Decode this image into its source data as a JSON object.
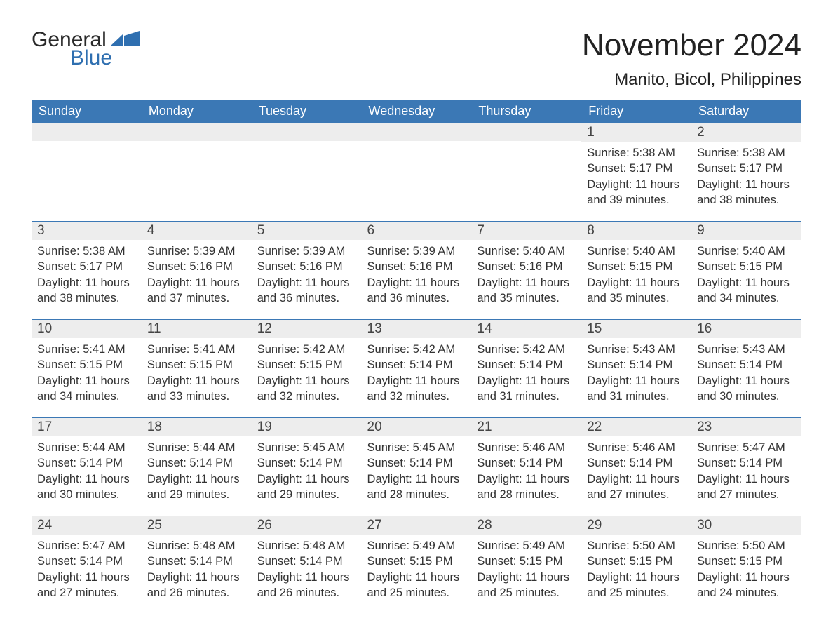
{
  "logo": {
    "line1": "General",
    "line2": "Blue",
    "flag_color": "#2f6fb0"
  },
  "title": "November 2024",
  "location": "Manito, Bicol, Philippines",
  "colors": {
    "header_bg": "#3b78b5",
    "header_text": "#ffffff",
    "daynum_bg": "#ededed",
    "rule": "#3b78b5",
    "body_text": "#333333",
    "page_bg": "#ffffff"
  },
  "day_labels": [
    "Sunday",
    "Monday",
    "Tuesday",
    "Wednesday",
    "Thursday",
    "Friday",
    "Saturday"
  ],
  "weeks": [
    [
      null,
      null,
      null,
      null,
      null,
      {
        "n": "1",
        "sunrise": "5:38 AM",
        "sunset": "5:17 PM",
        "daylight": "11 hours and 39 minutes."
      },
      {
        "n": "2",
        "sunrise": "5:38 AM",
        "sunset": "5:17 PM",
        "daylight": "11 hours and 38 minutes."
      }
    ],
    [
      {
        "n": "3",
        "sunrise": "5:38 AM",
        "sunset": "5:17 PM",
        "daylight": "11 hours and 38 minutes."
      },
      {
        "n": "4",
        "sunrise": "5:39 AM",
        "sunset": "5:16 PM",
        "daylight": "11 hours and 37 minutes."
      },
      {
        "n": "5",
        "sunrise": "5:39 AM",
        "sunset": "5:16 PM",
        "daylight": "11 hours and 36 minutes."
      },
      {
        "n": "6",
        "sunrise": "5:39 AM",
        "sunset": "5:16 PM",
        "daylight": "11 hours and 36 minutes."
      },
      {
        "n": "7",
        "sunrise": "5:40 AM",
        "sunset": "5:16 PM",
        "daylight": "11 hours and 35 minutes."
      },
      {
        "n": "8",
        "sunrise": "5:40 AM",
        "sunset": "5:15 PM",
        "daylight": "11 hours and 35 minutes."
      },
      {
        "n": "9",
        "sunrise": "5:40 AM",
        "sunset": "5:15 PM",
        "daylight": "11 hours and 34 minutes."
      }
    ],
    [
      {
        "n": "10",
        "sunrise": "5:41 AM",
        "sunset": "5:15 PM",
        "daylight": "11 hours and 34 minutes."
      },
      {
        "n": "11",
        "sunrise": "5:41 AM",
        "sunset": "5:15 PM",
        "daylight": "11 hours and 33 minutes."
      },
      {
        "n": "12",
        "sunrise": "5:42 AM",
        "sunset": "5:15 PM",
        "daylight": "11 hours and 32 minutes."
      },
      {
        "n": "13",
        "sunrise": "5:42 AM",
        "sunset": "5:14 PM",
        "daylight": "11 hours and 32 minutes."
      },
      {
        "n": "14",
        "sunrise": "5:42 AM",
        "sunset": "5:14 PM",
        "daylight": "11 hours and 31 minutes."
      },
      {
        "n": "15",
        "sunrise": "5:43 AM",
        "sunset": "5:14 PM",
        "daylight": "11 hours and 31 minutes."
      },
      {
        "n": "16",
        "sunrise": "5:43 AM",
        "sunset": "5:14 PM",
        "daylight": "11 hours and 30 minutes."
      }
    ],
    [
      {
        "n": "17",
        "sunrise": "5:44 AM",
        "sunset": "5:14 PM",
        "daylight": "11 hours and 30 minutes."
      },
      {
        "n": "18",
        "sunrise": "5:44 AM",
        "sunset": "5:14 PM",
        "daylight": "11 hours and 29 minutes."
      },
      {
        "n": "19",
        "sunrise": "5:45 AM",
        "sunset": "5:14 PM",
        "daylight": "11 hours and 29 minutes."
      },
      {
        "n": "20",
        "sunrise": "5:45 AM",
        "sunset": "5:14 PM",
        "daylight": "11 hours and 28 minutes."
      },
      {
        "n": "21",
        "sunrise": "5:46 AM",
        "sunset": "5:14 PM",
        "daylight": "11 hours and 28 minutes."
      },
      {
        "n": "22",
        "sunrise": "5:46 AM",
        "sunset": "5:14 PM",
        "daylight": "11 hours and 27 minutes."
      },
      {
        "n": "23",
        "sunrise": "5:47 AM",
        "sunset": "5:14 PM",
        "daylight": "11 hours and 27 minutes."
      }
    ],
    [
      {
        "n": "24",
        "sunrise": "5:47 AM",
        "sunset": "5:14 PM",
        "daylight": "11 hours and 27 minutes."
      },
      {
        "n": "25",
        "sunrise": "5:48 AM",
        "sunset": "5:14 PM",
        "daylight": "11 hours and 26 minutes."
      },
      {
        "n": "26",
        "sunrise": "5:48 AM",
        "sunset": "5:14 PM",
        "daylight": "11 hours and 26 minutes."
      },
      {
        "n": "27",
        "sunrise": "5:49 AM",
        "sunset": "5:15 PM",
        "daylight": "11 hours and 25 minutes."
      },
      {
        "n": "28",
        "sunrise": "5:49 AM",
        "sunset": "5:15 PM",
        "daylight": "11 hours and 25 minutes."
      },
      {
        "n": "29",
        "sunrise": "5:50 AM",
        "sunset": "5:15 PM",
        "daylight": "11 hours and 25 minutes."
      },
      {
        "n": "30",
        "sunrise": "5:50 AM",
        "sunset": "5:15 PM",
        "daylight": "11 hours and 24 minutes."
      }
    ]
  ],
  "labels": {
    "sunrise": "Sunrise: ",
    "sunset": "Sunset: ",
    "daylight": "Daylight: "
  }
}
